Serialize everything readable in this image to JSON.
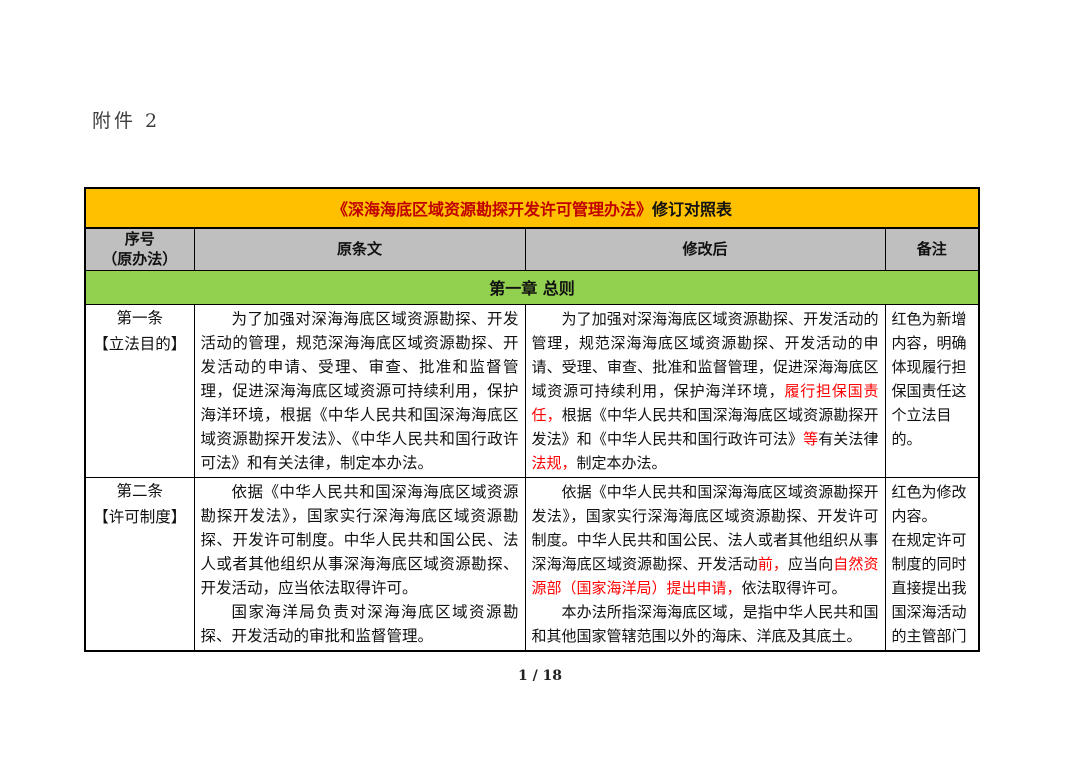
{
  "page": {
    "attachment_label": "附件 2",
    "footer_page_number": "1 / 18"
  },
  "colors": {
    "title_bar_bg": "#FFC000",
    "header_row_bg": "#BFBFBF",
    "chapter_row_bg": "#92D050",
    "body_highlight_red": "#FF0000",
    "title_book_red": "#C00000"
  },
  "table": {
    "title": {
      "book_title": "《深海海底区域资源勘探开发许可管理办法》",
      "suffix": "修订对照表"
    },
    "columns": {
      "col1_line1": "序号",
      "col1_line2": "（原办法）",
      "col2": "原条文",
      "col3": "修改后",
      "col4": "备注"
    },
    "chapter_heading": "第一章 总则",
    "rows": [
      {
        "number": "第一条",
        "tag": "【立法目的】",
        "original": [
          [
            {
              "t": "为了加强对深海海底区域资源勘探、开发活动的管理，规范深海海底区域资源勘探、开发活动的申请、受理、审查、批准和监督管理，促进深海海底区域资源可持续利用，保护海洋环境，根据《中华人民共和国深海海底区域资源勘探开发法》、《中华人民共和国行政许可法》和有关法律，制定本办法。"
            }
          ]
        ],
        "revised": [
          [
            {
              "t": "为了加强对深海海底区域资源勘探、开发活动的管理，规范深海海底区域资源勘探、开发活动的申请、受理、审查、批准和监督管理，促进深海海底区域资源可持续利用，保护海洋环境，"
            },
            {
              "t": "履行担保国责任，",
              "red": true
            },
            {
              "t": "根据《中华人民共和国深海海底区域资源勘探开发法》和《中华人民共和国行政许可法》"
            },
            {
              "t": "等",
              "red": true
            },
            {
              "t": "有关法律"
            },
            {
              "t": "法规，",
              "red": true
            },
            {
              "t": "制定本办法。"
            }
          ]
        ],
        "note": [
          [
            {
              "t": "红色为新增内容，明确体现履行担保国责任这个立法目的。"
            }
          ]
        ]
      },
      {
        "number": "第二条",
        "tag": "【许可制度】",
        "original": [
          [
            {
              "t": "依据《中华人民共和国深海海底区域资源勘探开发法》，国家实行深海海底区域资源勘探、开发许可制度。中华人民共和国公民、法人或者其他组织从事深海海底区域资源勘探、开发活动，应当依法取得许可。"
            }
          ],
          [
            {
              "t": "国家海洋局负责对深海海底区域资源勘探、开发活动的审批和监督管理。"
            }
          ]
        ],
        "revised": [
          [
            {
              "t": "依据《中华人民共和国深海海底区域资源勘探开发法》，国家实行深海海底区域资源勘探、开发许可制度。中华人民共和国公民、法人或者其他组织从事深海海底区域资源勘探、开发活动"
            },
            {
              "t": "前，",
              "red": true
            },
            {
              "t": "应当向"
            },
            {
              "t": "自然资源部（国家海洋局）提出申请，",
              "red": true
            },
            {
              "t": "依法取得许可。"
            }
          ],
          [
            {
              "t": "本办法所指深海海底区域，是指中华人民共和国和其他国家管辖范围以外的海床、洋底及其底土。"
            }
          ]
        ],
        "note": [
          [
            {
              "t": "红色为修改内容。"
            }
          ],
          [
            {
              "t": "在规定许可制度的同时直接提出我国深海活动的主管部门"
            }
          ]
        ]
      }
    ]
  }
}
